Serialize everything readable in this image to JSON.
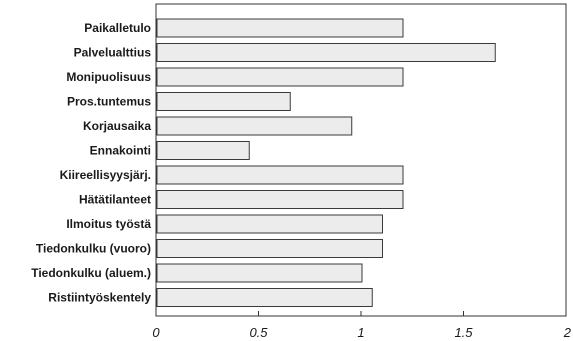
{
  "chart_data": {
    "type": "bar",
    "orientation": "horizontal",
    "categories": [
      "Paikalletulo",
      "Palvelualttius",
      "Monipuolisuus",
      "Pros.tuntemus",
      "Korjausaika",
      "Ennakointi",
      "Kiireellisyysjärj.",
      "Hätätilanteet",
      "Ilmoitus työstä",
      "Tiedonkulku (vuoro)",
      "Tiedonkulku (aluem.)",
      "Ristiintyöskentely"
    ],
    "values": [
      1.2,
      1.65,
      1.2,
      0.65,
      0.95,
      0.45,
      1.2,
      1.2,
      1.1,
      1.1,
      1.0,
      1.05
    ],
    "xlim": [
      0,
      2
    ],
    "xticks": [
      0,
      0.5,
      1,
      1.5,
      2
    ],
    "xtick_labels": [
      "0",
      "0.5",
      "1",
      "1.5",
      "2"
    ],
    "title": "",
    "xlabel": "",
    "ylabel": "",
    "grid": false,
    "colors": {
      "bar_fill": "#ececec",
      "bar_stroke": "#3a3a3a",
      "frame": "#333333"
    }
  }
}
